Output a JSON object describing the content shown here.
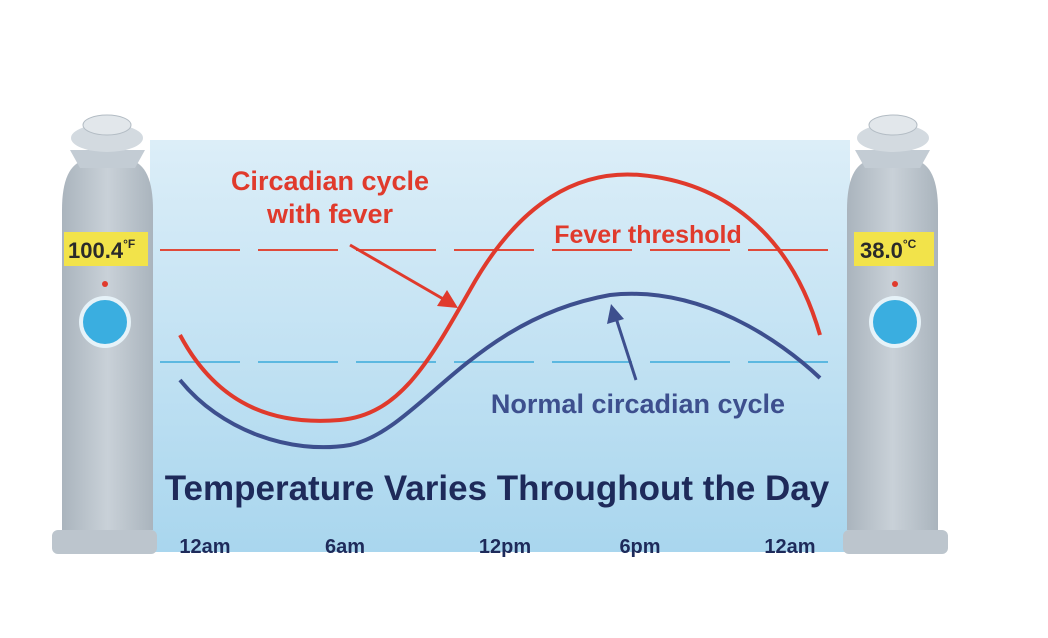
{
  "labels": {
    "fever_cycle": [
      "Circadian cycle",
      "with fever"
    ],
    "fever_threshold": "Fever threshold",
    "normal_cycle": "Normal circadian cycle",
    "title": "Temperature Varies Throughout the Day"
  },
  "time_axis": [
    "12am",
    "6am",
    "12pm",
    "6pm",
    "12am"
  ],
  "thermometers": [
    {
      "reading": "100.4",
      "unit": "°F"
    },
    {
      "reading": "38.0",
      "unit": "°C"
    }
  ]
}
